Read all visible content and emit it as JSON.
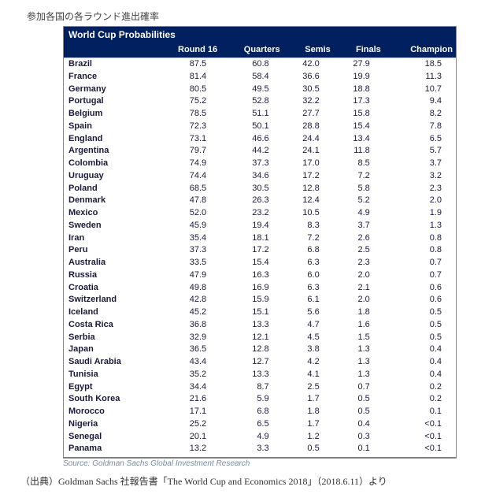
{
  "caption_top": "参加各国の各ラウンド進出確率",
  "table": {
    "type": "table",
    "title": "World Cup Probabilities",
    "header_bg": "#002060",
    "header_color": "#ffffff",
    "text_color": "#1a1a3a",
    "border_color": "#888888",
    "font_size_body": 11,
    "columns": [
      "",
      "Round 16",
      "Quarters",
      "Semis",
      "Finals",
      "Champion"
    ],
    "col_align": [
      "left",
      "right",
      "right",
      "right",
      "right",
      "right"
    ],
    "rows": [
      [
        "Brazil",
        "87.5",
        "60.8",
        "42.0",
        "27.9",
        "18.5"
      ],
      [
        "France",
        "81.4",
        "58.4",
        "36.6",
        "19.9",
        "11.3"
      ],
      [
        "Germany",
        "80.5",
        "49.5",
        "30.5",
        "18.8",
        "10.7"
      ],
      [
        "Portugal",
        "75.2",
        "52.8",
        "32.2",
        "17.3",
        "9.4"
      ],
      [
        "Belgium",
        "78.5",
        "51.1",
        "27.7",
        "15.8",
        "8.2"
      ],
      [
        "Spain",
        "72.3",
        "50.1",
        "28.8",
        "15.4",
        "7.8"
      ],
      [
        "England",
        "73.1",
        "46.6",
        "24.4",
        "13.4",
        "6.5"
      ],
      [
        "Argentina",
        "79.7",
        "44.2",
        "24.1",
        "11.8",
        "5.7"
      ],
      [
        "Colombia",
        "74.9",
        "37.3",
        "17.0",
        "8.5",
        "3.7"
      ],
      [
        "Uruguay",
        "74.4",
        "34.6",
        "17.2",
        "7.2",
        "3.2"
      ],
      [
        "Poland",
        "68.5",
        "30.5",
        "12.8",
        "5.8",
        "2.3"
      ],
      [
        "Denmark",
        "47.8",
        "26.3",
        "12.4",
        "5.2",
        "2.0"
      ],
      [
        "Mexico",
        "52.0",
        "23.2",
        "10.5",
        "4.9",
        "1.9"
      ],
      [
        "Sweden",
        "45.9",
        "19.4",
        "8.3",
        "3.7",
        "1.3"
      ],
      [
        "Iran",
        "35.4",
        "18.1",
        "7.2",
        "2.6",
        "0.8"
      ],
      [
        "Peru",
        "37.3",
        "17.2",
        "6.8",
        "2.5",
        "0.8"
      ],
      [
        "Australia",
        "33.5",
        "15.4",
        "6.3",
        "2.3",
        "0.7"
      ],
      [
        "Russia",
        "47.9",
        "16.3",
        "6.0",
        "2.0",
        "0.7"
      ],
      [
        "Croatia",
        "49.8",
        "16.9",
        "6.3",
        "2.1",
        "0.6"
      ],
      [
        "Switzerland",
        "42.8",
        "15.9",
        "6.1",
        "2.0",
        "0.6"
      ],
      [
        "Iceland",
        "45.2",
        "15.1",
        "5.6",
        "1.8",
        "0.5"
      ],
      [
        "Costa Rica",
        "36.8",
        "13.3",
        "4.7",
        "1.6",
        "0.5"
      ],
      [
        "Serbia",
        "32.9",
        "12.1",
        "4.5",
        "1.5",
        "0.5"
      ],
      [
        "Japan",
        "36.5",
        "12.8",
        "3.8",
        "1.3",
        "0.4"
      ],
      [
        "Saudi Arabia",
        "43.4",
        "12.7",
        "4.2",
        "1.3",
        "0.4"
      ],
      [
        "Tunisia",
        "35.2",
        "13.3",
        "4.1",
        "1.3",
        "0.4"
      ],
      [
        "Egypt",
        "34.4",
        "8.7",
        "2.5",
        "0.7",
        "0.2"
      ],
      [
        "South Korea",
        "21.6",
        "5.9",
        "1.7",
        "0.5",
        "0.2"
      ],
      [
        "Morocco",
        "17.1",
        "6.8",
        "1.8",
        "0.5",
        "0.1"
      ],
      [
        "Nigeria",
        "25.2",
        "6.5",
        "1.7",
        "0.4",
        "<0.1"
      ],
      [
        "Senegal",
        "20.1",
        "4.9",
        "1.2",
        "0.3",
        "<0.1"
      ],
      [
        "Panama",
        "13.2",
        "3.3",
        "0.5",
        "0.1",
        "<0.1"
      ]
    ]
  },
  "source_line": "Source: Goldman Sachs Global Investment Research",
  "bottom_cite": "（出典）Goldman Sachs 社報告書「The World Cup and Economics 2018」（2018.6.11）より"
}
